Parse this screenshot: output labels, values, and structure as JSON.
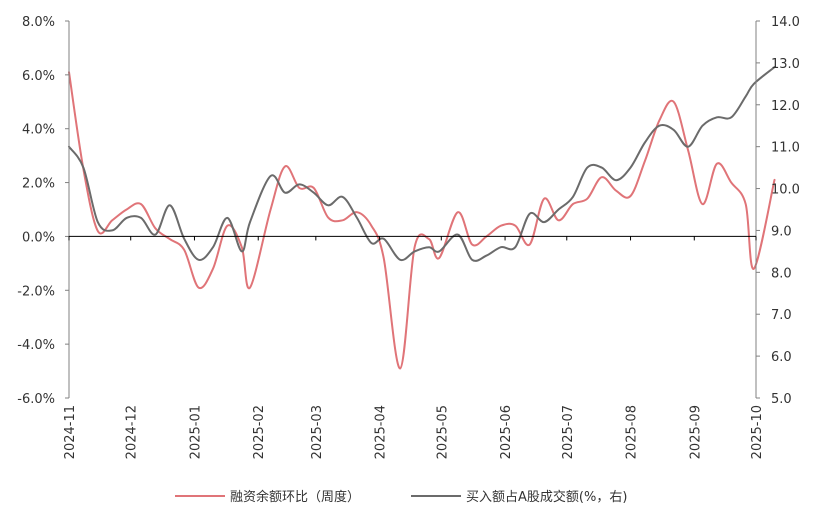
{
  "chart_data": {
    "type": "line",
    "x": [
      "2024-11",
      "2024-12",
      "2025-01",
      "2025-02",
      "2025-03",
      "2025-04",
      "2025-05",
      "2025-06",
      "2025-07",
      "2025-08",
      "2025-09",
      "2025-10"
    ],
    "y_left": {
      "ylim": [
        -6,
        8
      ],
      "ticks": [
        8,
        6,
        4,
        2,
        0,
        -2,
        -4,
        -6
      ],
      "tick_labels": [
        "8.0%",
        "6.0%",
        "4.0%",
        "2.0%",
        "0.0%",
        "-2.0%",
        "-4.0%",
        "-6.0%"
      ]
    },
    "y_right": {
      "ylim": [
        5,
        14
      ],
      "ticks": [
        14,
        13,
        12,
        11,
        10,
        9,
        8,
        7,
        6,
        5
      ],
      "tick_labels": [
        "14.0",
        "13.0",
        "12.0",
        "11.0",
        "10.0",
        "9.0",
        "8.0",
        "7.0",
        "6.0",
        "5.0"
      ]
    },
    "series": [
      {
        "name": "融资余额环比（周度）",
        "axis": "left",
        "color": "#E07478",
        "points": [
          [
            "2024-11-01",
            6.1
          ],
          [
            "2024-11-08",
            2.5
          ],
          [
            "2024-11-15",
            0.2
          ],
          [
            "2024-11-22",
            0.6
          ],
          [
            "2024-11-29",
            1.0
          ],
          [
            "2024-12-06",
            1.2
          ],
          [
            "2024-12-13",
            0.3
          ],
          [
            "2024-12-20",
            -0.1
          ],
          [
            "2024-12-27",
            -0.5
          ],
          [
            "2025-01-03",
            -1.9
          ],
          [
            "2025-01-10",
            -1.2
          ],
          [
            "2025-01-17",
            0.4
          ],
          [
            "2025-01-24",
            -0.4
          ],
          [
            "2025-01-28",
            -1.9
          ],
          [
            "2025-02-07",
            1.0
          ],
          [
            "2025-02-14",
            2.6
          ],
          [
            "2025-02-21",
            1.8
          ],
          [
            "2025-02-28",
            1.8
          ],
          [
            "2025-03-07",
            0.7
          ],
          [
            "2025-03-14",
            0.6
          ],
          [
            "2025-03-21",
            0.9
          ],
          [
            "2025-03-28",
            0.4
          ],
          [
            "2025-04-03",
            -0.8
          ],
          [
            "2025-04-11",
            -4.9
          ],
          [
            "2025-04-18",
            -0.4
          ],
          [
            "2025-04-25",
            -0.1
          ],
          [
            "2025-04-30",
            -0.8
          ],
          [
            "2025-05-09",
            0.9
          ],
          [
            "2025-05-16",
            -0.3
          ],
          [
            "2025-05-23",
            0.0
          ],
          [
            "2025-05-30",
            0.4
          ],
          [
            "2025-06-06",
            0.4
          ],
          [
            "2025-06-13",
            -0.3
          ],
          [
            "2025-06-20",
            1.4
          ],
          [
            "2025-06-27",
            0.6
          ],
          [
            "2025-07-04",
            1.2
          ],
          [
            "2025-07-11",
            1.4
          ],
          [
            "2025-07-18",
            2.2
          ],
          [
            "2025-07-25",
            1.7
          ],
          [
            "2025-08-01",
            1.5
          ],
          [
            "2025-08-08",
            2.8
          ],
          [
            "2025-08-15",
            4.3
          ],
          [
            "2025-08-22",
            5.0
          ],
          [
            "2025-08-29",
            3.2
          ],
          [
            "2025-09-05",
            1.2
          ],
          [
            "2025-09-12",
            2.7
          ],
          [
            "2025-09-19",
            2.0
          ],
          [
            "2025-09-26",
            1.2
          ],
          [
            "2025-09-30",
            -1.2
          ],
          [
            "2025-10-10",
            2.1
          ]
        ]
      },
      {
        "name": "买入额占A股成交额(%，右)",
        "axis": "right",
        "color": "#6B6B6B",
        "points": [
          [
            "2024-11-01",
            11.0
          ],
          [
            "2024-11-08",
            10.5
          ],
          [
            "2024-11-15",
            9.2
          ],
          [
            "2024-11-22",
            9.0
          ],
          [
            "2024-11-29",
            9.3
          ],
          [
            "2024-12-06",
            9.3
          ],
          [
            "2024-12-13",
            8.9
          ],
          [
            "2024-12-20",
            9.6
          ],
          [
            "2024-12-27",
            8.8
          ],
          [
            "2025-01-03",
            8.3
          ],
          [
            "2025-01-10",
            8.6
          ],
          [
            "2025-01-17",
            9.3
          ],
          [
            "2025-01-24",
            8.5
          ],
          [
            "2025-01-28",
            9.2
          ],
          [
            "2025-02-07",
            10.3
          ],
          [
            "2025-02-14",
            9.9
          ],
          [
            "2025-02-21",
            10.1
          ],
          [
            "2025-02-28",
            9.9
          ],
          [
            "2025-03-07",
            9.6
          ],
          [
            "2025-03-14",
            9.8
          ],
          [
            "2025-03-21",
            9.3
          ],
          [
            "2025-03-28",
            8.7
          ],
          [
            "2025-04-03",
            8.8
          ],
          [
            "2025-04-11",
            8.3
          ],
          [
            "2025-04-18",
            8.5
          ],
          [
            "2025-04-25",
            8.6
          ],
          [
            "2025-04-30",
            8.5
          ],
          [
            "2025-05-09",
            8.9
          ],
          [
            "2025-05-16",
            8.3
          ],
          [
            "2025-05-23",
            8.4
          ],
          [
            "2025-05-30",
            8.6
          ],
          [
            "2025-06-06",
            8.6
          ],
          [
            "2025-06-13",
            9.4
          ],
          [
            "2025-06-20",
            9.2
          ],
          [
            "2025-06-27",
            9.5
          ],
          [
            "2025-07-04",
            9.8
          ],
          [
            "2025-07-11",
            10.5
          ],
          [
            "2025-07-18",
            10.5
          ],
          [
            "2025-07-25",
            10.2
          ],
          [
            "2025-08-01",
            10.5
          ],
          [
            "2025-08-08",
            11.1
          ],
          [
            "2025-08-15",
            11.5
          ],
          [
            "2025-08-22",
            11.4
          ],
          [
            "2025-08-29",
            11.0
          ],
          [
            "2025-09-05",
            11.5
          ],
          [
            "2025-09-12",
            11.7
          ],
          [
            "2025-09-19",
            11.7
          ],
          [
            "2025-09-26",
            12.2
          ],
          [
            "2025-09-30",
            12.5
          ],
          [
            "2025-10-10",
            12.9
          ]
        ]
      }
    ],
    "legend_position": "bottom",
    "grid": false
  }
}
